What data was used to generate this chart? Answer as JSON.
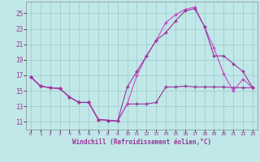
{
  "xlabel": "Windchill (Refroidissement éolien,°C)",
  "bg_color": "#c0e8e8",
  "grid_color": "#a0c8c8",
  "line_color": "#993399",
  "line_color2": "#cc44cc",
  "x_ticks": [
    0,
    1,
    2,
    3,
    4,
    5,
    6,
    7,
    8,
    9,
    10,
    11,
    12,
    13,
    14,
    15,
    16,
    17,
    18,
    19,
    20,
    21,
    22,
    23
  ],
  "y_ticks": [
    11,
    13,
    15,
    17,
    19,
    21,
    23,
    25
  ],
  "ylim": [
    10.0,
    26.5
  ],
  "xlim": [
    -0.5,
    23.5
  ],
  "line1_x": [
    0,
    1,
    2,
    3,
    4,
    5,
    6,
    7,
    8,
    9,
    10,
    11,
    12,
    13,
    14,
    15,
    16,
    17,
    18,
    19,
    20,
    21,
    22,
    23
  ],
  "line1_y": [
    16.8,
    15.6,
    15.4,
    15.3,
    14.2,
    13.5,
    13.5,
    11.3,
    11.2,
    11.1,
    13.3,
    13.3,
    13.3,
    13.5,
    15.5,
    15.5,
    15.6,
    15.5,
    15.5,
    15.5,
    15.5,
    15.4,
    15.4,
    15.4
  ],
  "line2_x": [
    0,
    1,
    2,
    3,
    4,
    5,
    6,
    7,
    8,
    9,
    10,
    11,
    12,
    13,
    14,
    15,
    16,
    17,
    18,
    19,
    20,
    21,
    22,
    23
  ],
  "line2_y": [
    16.8,
    15.6,
    15.4,
    15.3,
    14.2,
    13.5,
    13.5,
    11.3,
    11.2,
    11.1,
    13.3,
    17.0,
    19.5,
    21.5,
    23.8,
    24.8,
    25.5,
    25.8,
    23.3,
    20.5,
    17.2,
    15.0,
    16.5,
    15.4
  ],
  "line3_x": [
    0,
    1,
    2,
    3,
    4,
    5,
    6,
    7,
    8,
    9,
    10,
    11,
    12,
    13,
    14,
    15,
    16,
    17,
    18,
    19,
    20,
    21,
    22,
    23
  ],
  "line3_y": [
    16.8,
    15.6,
    15.4,
    15.3,
    14.2,
    13.5,
    13.5,
    11.3,
    11.2,
    11.1,
    15.5,
    17.5,
    19.5,
    21.5,
    22.5,
    24.0,
    25.3,
    25.6,
    23.3,
    19.5,
    19.5,
    18.5,
    17.5,
    15.4
  ]
}
